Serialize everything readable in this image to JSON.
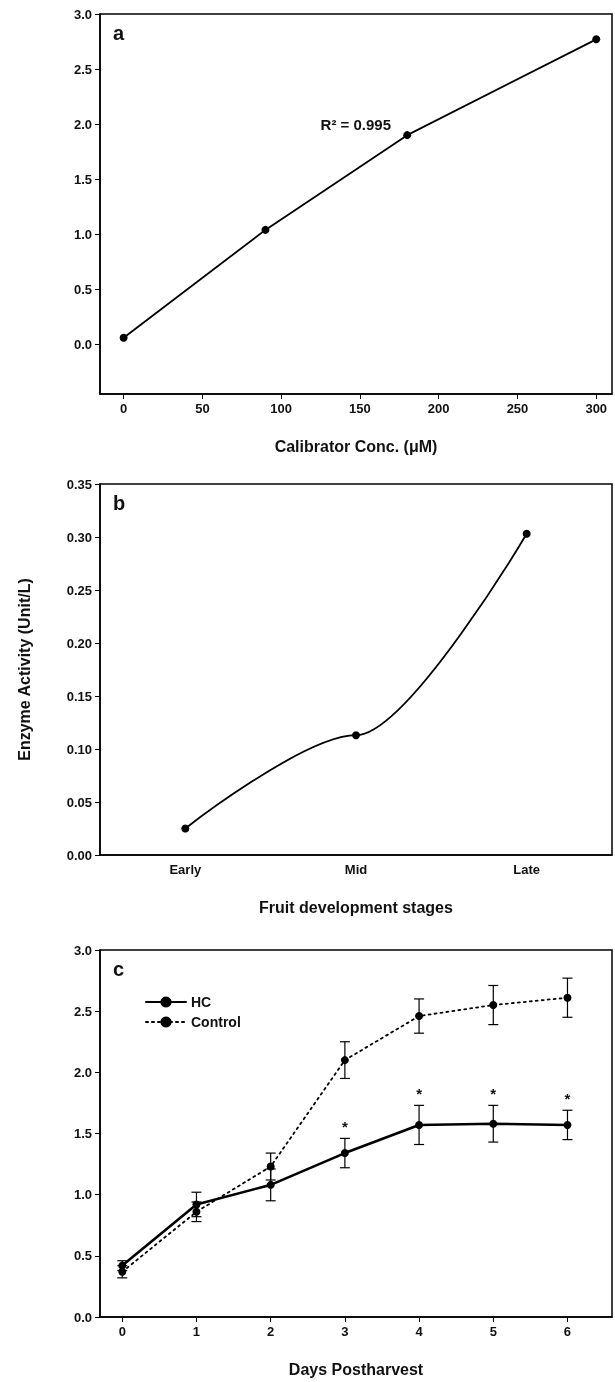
{
  "chart_data": [
    {
      "type": "line",
      "title": "a",
      "xlabel": "Calibrator Conc. (μM)",
      "x": [
        0,
        90,
        180,
        300
      ],
      "values": [
        0.06,
        1.04,
        1.9,
        2.77
      ],
      "color": "#000000",
      "marker": "circle",
      "line_style": "solid",
      "xlim": [
        -15,
        310
      ],
      "xticks": [
        0,
        50,
        100,
        150,
        200,
        250,
        300
      ],
      "ylim": [
        -0.45,
        3.0
      ],
      "yticks": [
        {
          "value": 0,
          "label": "0.0"
        },
        {
          "value": 0.5,
          "label": "0.5"
        },
        {
          "value": 1,
          "label": "1.0"
        },
        {
          "value": 1.5,
          "label": "1.5"
        },
        {
          "value": 2,
          "label": "2.0"
        },
        {
          "value": 2.5,
          "label": "2.5"
        },
        {
          "value": 3,
          "label": "3.0"
        }
      ],
      "grid": false,
      "legend": false,
      "annotations": [
        "R² = 0.995"
      ]
    },
    {
      "type": "line",
      "title": "b",
      "xlabel": "Fruit development stages",
      "ylabel": "Enzyme Activity (Unit/L)",
      "categories": [
        "Early",
        "Mid",
        "Late"
      ],
      "values": [
        0.025,
        0.113,
        0.303
      ],
      "color": "#000000",
      "marker": "circle",
      "line_style": "solid",
      "ylim": [
        0,
        0.35
      ],
      "yticks": [
        {
          "value": 0,
          "label": "0.00"
        },
        {
          "value": 0.05,
          "label": "0.05"
        },
        {
          "value": 0.1,
          "label": "0.10"
        },
        {
          "value": 0.15,
          "label": "0.15"
        },
        {
          "value": 0.2,
          "label": "0.20"
        },
        {
          "value": 0.25,
          "label": "0.25"
        },
        {
          "value": 0.3,
          "label": "0.30"
        },
        {
          "value": 0.35,
          "label": "0.35"
        }
      ],
      "grid": false,
      "legend": false
    },
    {
      "type": "line",
      "title": "c",
      "xlabel": "Days Postharvest",
      "x": [
        0,
        1,
        2,
        3,
        4,
        5,
        6
      ],
      "series": [
        {
          "name": "HC",
          "color": "#000000",
          "line_style": "solid",
          "values": [
            0.42,
            0.92,
            1.08,
            1.34,
            1.57,
            1.58,
            1.57
          ],
          "errors": [
            0.04,
            0.1,
            0.13,
            0.12,
            0.16,
            0.15,
            0.12
          ]
        },
        {
          "name": "Control",
          "color": "#000000",
          "line_style": "dotted",
          "values": [
            0.37,
            0.86,
            1.23,
            2.1,
            2.46,
            2.55,
            2.61
          ],
          "errors": [
            0.05,
            0.08,
            0.11,
            0.15,
            0.14,
            0.16,
            0.16
          ]
        }
      ],
      "marker": "circle",
      "xlim": [
        -0.3,
        6.6
      ],
      "xticks": [
        0,
        1,
        2,
        3,
        4,
        5,
        6
      ],
      "ylim": [
        0,
        3.0
      ],
      "yticks": [
        {
          "value": 0,
          "label": "0.0"
        },
        {
          "value": 0.5,
          "label": "0.5"
        },
        {
          "value": 1,
          "label": "1.0"
        },
        {
          "value": 1.5,
          "label": "1.5"
        },
        {
          "value": 2,
          "label": "2.0"
        },
        {
          "value": 2.5,
          "label": "2.5"
        },
        {
          "value": 3,
          "label": "3.0"
        }
      ],
      "grid": false,
      "legend": "top left",
      "annotations": [
        "*",
        "*",
        "*",
        "*"
      ]
    }
  ]
}
